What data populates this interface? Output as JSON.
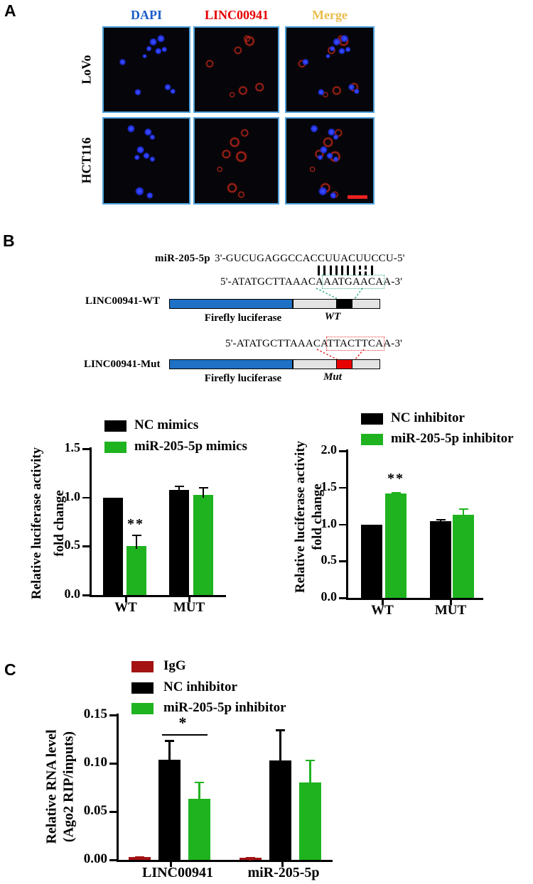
{
  "panel_a": {
    "label": "A",
    "col_headers": [
      {
        "text": "DAPI",
        "color": "#1a5cc8"
      },
      {
        "text": "LINC00941",
        "color": "#e60000"
      },
      {
        "text": "Merge",
        "color": "#e9be4b"
      }
    ],
    "row_labels": [
      "LoVo",
      "HCT116"
    ]
  },
  "panel_b": {
    "label": "B",
    "mirna_label": "miR-205-5p",
    "mirna_seq": "3'-GUCUGAGGCCACCUUACUUCCU-5'",
    "pairing": {
      "total": 10,
      "dashed_indices": [
        8,
        9
      ]
    },
    "wt_seq": {
      "pre": "5'-ATATGCTTAAACA",
      "site": "AATGAACA",
      "post": "A-3'"
    },
    "mut_seq": {
      "pre": "5'-ATATGCTTAAACA",
      "site": "TTACTTCA",
      "post": "A-3'"
    },
    "wt_construct": {
      "name": "LINC00941-WT",
      "reporter": "Firefly luciferase",
      "site_label": "WT"
    },
    "mut_construct": {
      "name": "LINC00941-Mut",
      "reporter": "Firefly luciferase",
      "site_label": "Mut"
    }
  },
  "panel_c": {
    "label": "C"
  },
  "colors": {
    "green": "#1fb31f",
    "maroon": "#a41212",
    "black": "#000000",
    "construct_blue": "#1e71c4",
    "site_red": "#e80000",
    "micrograph_border_blue": "#4da0dc"
  },
  "chart_data": [
    {
      "id": "b_left",
      "type": "bar",
      "categories": [
        "WT",
        "MUT"
      ],
      "series": [
        {
          "name": "NC mimics",
          "color": "#000000",
          "err_color": "#000000",
          "values": [
            1.0,
            1.08
          ],
          "errors": [
            0,
            0.045
          ]
        },
        {
          "name": "miR-205-5p mimics",
          "color": "#1fb31f",
          "err_color": "#000000",
          "values": [
            0.5,
            1.03
          ],
          "errors": [
            0.12,
            0.08
          ]
        }
      ],
      "ylabel": "Relative luciferase activity fold change",
      "ylabel_lines": [
        "Relative luciferase activity",
        "fold change"
      ],
      "yticks": [
        "0.0",
        "0.5",
        "1.0",
        "1.5"
      ],
      "ylim": [
        0,
        1.5
      ],
      "legend_position": "top",
      "grid": false,
      "significance": [
        {
          "label": "**",
          "category": "WT",
          "series": "miR-205-5p mimics"
        }
      ]
    },
    {
      "id": "b_right",
      "type": "bar",
      "categories": [
        "WT",
        "MUT"
      ],
      "series": [
        {
          "name": "NC inhibitor",
          "color": "#000000",
          "err_color": "#000000",
          "values": [
            1.0,
            1.04
          ],
          "errors": [
            0,
            0.03
          ]
        },
        {
          "name": "miR-205-5p inhibitor",
          "color": "#1fb31f",
          "err_color": "#1fb31f",
          "values": [
            1.42,
            1.13
          ],
          "errors": [
            0.02,
            0.09
          ]
        }
      ],
      "ylabel": "Relative luciferase activity fold change",
      "ylabel_lines": [
        "Relative luciferase activity",
        "fold change"
      ],
      "yticks": [
        "0.0",
        "0.5",
        "1.0",
        "1.5",
        "2.0"
      ],
      "ylim": [
        0,
        2.0
      ],
      "legend_position": "top",
      "grid": false,
      "significance": [
        {
          "label": "**",
          "category": "WT",
          "series": "miR-205-5p inhibitor"
        }
      ]
    },
    {
      "id": "c",
      "type": "bar",
      "categories": [
        "LINC00941",
        "miR-205-5p"
      ],
      "series": [
        {
          "name": "IgG",
          "color": "#a41212",
          "err_color": "#a41212",
          "values": [
            0.003,
            0.002
          ],
          "errors": [
            0.001,
            0.001
          ]
        },
        {
          "name": "NC inhibitor",
          "color": "#000000",
          "err_color": "#000000",
          "values": [
            0.104,
            0.103
          ],
          "errors": [
            0.02,
            0.032
          ]
        },
        {
          "name": "miR-205-5p inhibitor",
          "color": "#1fb31f",
          "err_color": "#1fb31f",
          "values": [
            0.063,
            0.08
          ],
          "errors": [
            0.018,
            0.024
          ]
        }
      ],
      "ylabel": "Relative RNA level (Ago2 RIP/inputs)",
      "ylabel_lines": [
        "Relative RNA level",
        "(Ago2 RIP/inputs)"
      ],
      "yticks": [
        "0.00",
        "0.05",
        "0.10",
        "0.15"
      ],
      "ylim": [
        0,
        0.15
      ],
      "legend_position": "top",
      "grid": false,
      "significance": [
        {
          "label": "*",
          "category": "LINC00941",
          "between": [
            "NC inhibitor",
            "miR-205-5p inhibitor"
          ]
        }
      ]
    }
  ]
}
